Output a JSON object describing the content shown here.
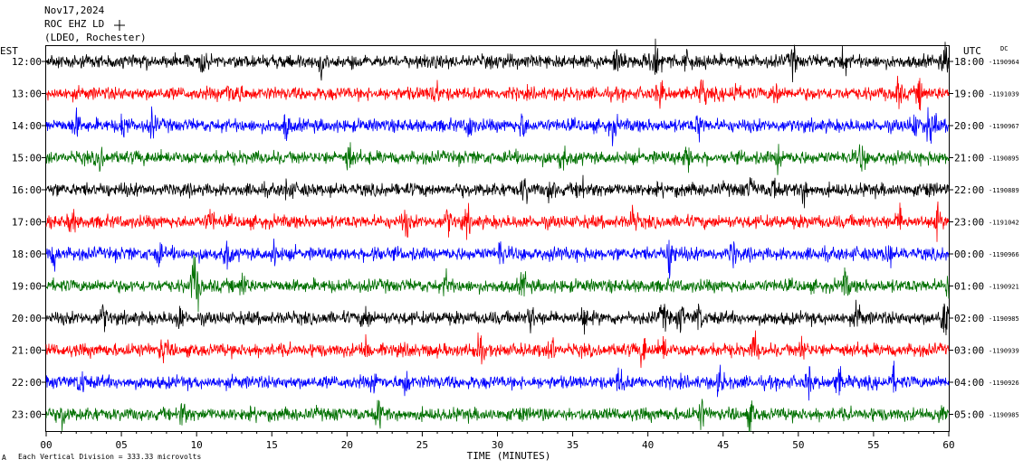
{
  "header": {
    "date": "Nov17,2024",
    "station": "ROC EHZ LD",
    "network": "(LDEO, Rochester)"
  },
  "left_axis_label": "EST",
  "right_axis_label": "UTC",
  "dc_label": "DC",
  "footer": {
    "scale_text": "Each Vertical Division =  333.33 microvolts",
    "corner_mark": "A"
  },
  "chart_data": {
    "type": "line",
    "title": "",
    "xlabel": "TIME (MINUTES)",
    "ylabel": "",
    "xlim": [
      0,
      60
    ],
    "x_ticks": [
      "00",
      "05",
      "10",
      "15",
      "20",
      "25",
      "30",
      "35",
      "40",
      "45",
      "50",
      "55",
      "60"
    ],
    "trace_colors": [
      "#000000",
      "#ff0000",
      "#0000ff",
      "#007000"
    ],
    "rows": [
      {
        "est": "12:00",
        "utc": "18:00",
        "dc": "-1190964"
      },
      {
        "est": "13:00",
        "utc": "19:00",
        "dc": "-1191039"
      },
      {
        "est": "14:00",
        "utc": "20:00",
        "dc": "-1190967"
      },
      {
        "est": "15:00",
        "utc": "21:00",
        "dc": "-1190895"
      },
      {
        "est": "16:00",
        "utc": "22:00",
        "dc": "-1190889"
      },
      {
        "est": "17:00",
        "utc": "23:00",
        "dc": "-1191042"
      },
      {
        "est": "18:00",
        "utc": "00:00",
        "dc": "-1190966"
      },
      {
        "est": "19:00",
        "utc": "01:00",
        "dc": "-1190921"
      },
      {
        "est": "20:00",
        "utc": "02:00",
        "dc": "-1190985"
      },
      {
        "est": "21:00",
        "utc": "03:00",
        "dc": "-1190939"
      },
      {
        "est": "22:00",
        "utc": "04:00",
        "dc": "-1190926"
      },
      {
        "est": "23:00",
        "utc": "05:00",
        "dc": "-1190985"
      }
    ]
  }
}
